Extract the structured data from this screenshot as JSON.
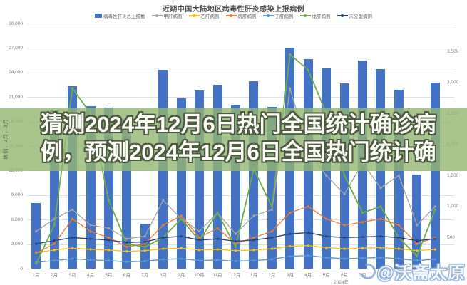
{
  "title": "近期中国大陆地区病毒性肝炎感染上报病例",
  "overlay": {
    "line1": "猜测2024年12月6日热门全国统计确诊病",
    "line2": "例，预测2024年12月6日全国热门统计确",
    "side_text": "病例，2月，3月"
  },
  "watermark": {
    "text": "@沃斋太原"
  },
  "chart_data": {
    "type": "bar",
    "title": "近期中国大陆地区病毒性肝炎感染上报病例",
    "categories": [
      "1月",
      "2月",
      "3月",
      "4月",
      "5月",
      "6月",
      "7月",
      "8月",
      "9月",
      "10月",
      "11月",
      "12月",
      "1月",
      "2月",
      "3月",
      "4月",
      "5月",
      "6月",
      "7月",
      "8月",
      "9月",
      "10月",
      "11月"
    ],
    "x_group_label": "2024年",
    "y_left": {
      "min": 0,
      "max": 30000,
      "step": 3000
    },
    "y_right": {
      "min": 0,
      "max": 3500,
      "step": 500
    },
    "grid": "horizontal",
    "legend_position": "top",
    "series": [
      {
        "name": "病毒性肝炎总上报数",
        "type": "bar",
        "axis": "left",
        "color": "#4472c4",
        "values": [
          8000,
          19400,
          22300,
          19900,
          19700,
          18300,
          5500,
          24300,
          20800,
          21800,
          22500,
          20100,
          22900,
          19800,
          27000,
          25600,
          24500,
          22700,
          25500,
          24400,
          21900,
          11500,
          22800
        ]
      },
      {
        "name": "甲肝病例",
        "type": "line",
        "axis": "right",
        "color": "#a5a5a5",
        "values": [
          600,
          800,
          950,
          700,
          650,
          480,
          520,
          1100,
          800,
          600,
          900,
          560,
          850,
          950,
          2900,
          1900,
          1500,
          1200,
          1700,
          1300,
          1500,
          700,
          1000
        ]
      },
      {
        "name": "乙肝病例",
        "type": "line",
        "axis": "right",
        "color": "#ffc000",
        "values": [
          260,
          300,
          330,
          310,
          300,
          280,
          290,
          320,
          330,
          300,
          310,
          290,
          300,
          320,
          360,
          370,
          340,
          320,
          330,
          340,
          320,
          290,
          310
        ]
      },
      {
        "name": "丙肝病例",
        "type": "line",
        "axis": "right",
        "color": "#ed7d31",
        "values": [
          250,
          400,
          800,
          600,
          500,
          350,
          400,
          700,
          850,
          500,
          650,
          400,
          500,
          600,
          900,
          1000,
          800,
          700,
          750,
          800,
          700,
          400,
          500
        ]
      },
      {
        "name": "丁肝病例",
        "type": "line",
        "axis": "right",
        "color": "#5b9bd5",
        "values": [
          100,
          130,
          160,
          140,
          130,
          110,
          120,
          150,
          160,
          130,
          140,
          120,
          130,
          150,
          200,
          210,
          180,
          160,
          170,
          180,
          160,
          130,
          150
        ]
      },
      {
        "name": "戊肝病例",
        "type": "line",
        "axis": "right",
        "color": "#70ad47",
        "values": [
          80,
          700,
          2900,
          2500,
          1100,
          400,
          350,
          500,
          800,
          450,
          900,
          350,
          1600,
          1000,
          3450,
          3200,
          2500,
          1500,
          900,
          1000,
          500,
          200,
          950
        ]
      },
      {
        "name": "未分型病例",
        "type": "line",
        "axis": "right",
        "color": "#264478",
        "values": [
          400,
          450,
          500,
          480,
          460,
          420,
          430,
          500,
          520,
          460,
          480,
          440,
          460,
          500,
          560,
          580,
          520,
          500,
          510,
          520,
          500,
          450,
          480
        ]
      }
    ]
  }
}
